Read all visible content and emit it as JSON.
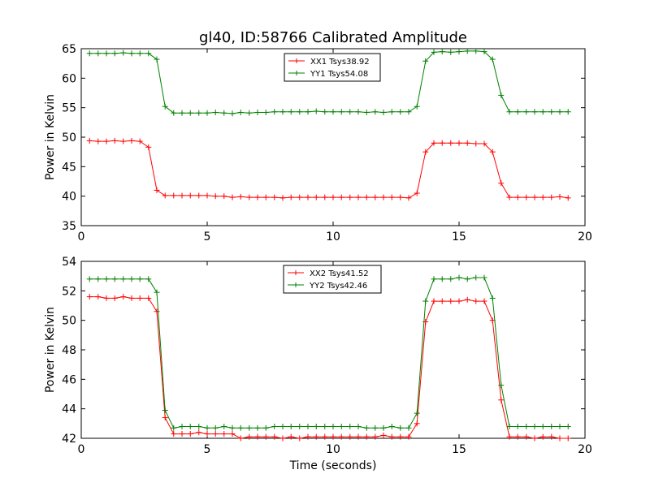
{
  "figure": {
    "title": "gl40, ID:58766 Calibrated Amplitude",
    "xlabel": "Time (seconds)",
    "background": "#ffffff"
  },
  "chart_data": [
    {
      "type": "line",
      "ylabel": "Power in Kelvin",
      "xlim": [
        0,
        20
      ],
      "ylim": [
        35,
        65
      ],
      "xticks": [
        "0",
        "5",
        "10",
        "15",
        "20"
      ],
      "yticks": [
        "35",
        "40",
        "45",
        "50",
        "55",
        "60",
        "65"
      ],
      "legend_position": "top-center",
      "x": [
        0.33,
        0.67,
        1.0,
        1.33,
        1.67,
        2.0,
        2.33,
        2.67,
        3.0,
        3.33,
        3.67,
        4.0,
        4.33,
        4.67,
        5.0,
        5.33,
        5.67,
        6.0,
        6.33,
        6.67,
        7.0,
        7.33,
        7.67,
        8.0,
        8.33,
        8.67,
        9.0,
        9.33,
        9.67,
        10.0,
        10.33,
        10.67,
        11.0,
        11.33,
        11.67,
        12.0,
        12.33,
        12.67,
        13.0,
        13.33,
        13.67,
        14.0,
        14.33,
        14.67,
        15.0,
        15.33,
        15.67,
        16.0,
        16.33,
        16.67,
        17.0,
        17.33,
        17.67,
        18.0,
        18.33,
        18.67,
        19.0,
        19.33
      ],
      "series": [
        {
          "name": "XX1 Tsys38.92",
          "color": "#ff0000",
          "values": [
            49.4,
            49.3,
            49.3,
            49.4,
            49.3,
            49.4,
            49.3,
            48.3,
            41.0,
            40.1,
            40.1,
            40.1,
            40.1,
            40.1,
            40.1,
            40.0,
            40.0,
            39.8,
            39.9,
            39.8,
            39.8,
            39.8,
            39.8,
            39.7,
            39.8,
            39.8,
            39.8,
            39.8,
            39.8,
            39.8,
            39.8,
            39.8,
            39.8,
            39.8,
            39.8,
            39.8,
            39.8,
            39.8,
            39.7,
            40.5,
            47.5,
            49.0,
            49.0,
            49.0,
            49.0,
            49.0,
            48.9,
            48.9,
            47.5,
            42.2,
            39.8,
            39.8,
            39.8,
            39.8,
            39.8,
            39.8,
            39.9,
            39.7
          ]
        },
        {
          "name": "YY1 Tsys54.08",
          "color": "#008000",
          "values": [
            64.2,
            64.2,
            64.2,
            64.2,
            64.3,
            64.2,
            64.2,
            64.2,
            63.2,
            55.2,
            54.1,
            54.1,
            54.1,
            54.1,
            54.1,
            54.2,
            54.1,
            54.0,
            54.2,
            54.1,
            54.2,
            54.2,
            54.3,
            54.3,
            54.3,
            54.3,
            54.3,
            54.4,
            54.3,
            54.3,
            54.3,
            54.3,
            54.3,
            54.2,
            54.3,
            54.2,
            54.3,
            54.3,
            54.3,
            55.2,
            62.9,
            64.4,
            64.5,
            64.4,
            64.5,
            64.6,
            64.6,
            64.5,
            63.2,
            57.1,
            54.3,
            54.3,
            54.3,
            54.3,
            54.3,
            54.3,
            54.3,
            54.3
          ]
        }
      ]
    },
    {
      "type": "line",
      "ylabel": "Power in Kelvin",
      "xlim": [
        0,
        20
      ],
      "ylim": [
        42,
        54
      ],
      "xticks": [
        "0",
        "5",
        "10",
        "15",
        "20"
      ],
      "yticks": [
        "42",
        "44",
        "46",
        "48",
        "50",
        "52",
        "54"
      ],
      "legend_position": "top-center",
      "x": [
        0.33,
        0.67,
        1.0,
        1.33,
        1.67,
        2.0,
        2.33,
        2.67,
        3.0,
        3.33,
        3.67,
        4.0,
        4.33,
        4.67,
        5.0,
        5.33,
        5.67,
        6.0,
        6.33,
        6.67,
        7.0,
        7.33,
        7.67,
        8.0,
        8.33,
        8.67,
        9.0,
        9.33,
        9.67,
        10.0,
        10.33,
        10.67,
        11.0,
        11.33,
        11.67,
        12.0,
        12.33,
        12.67,
        13.0,
        13.33,
        13.67,
        14.0,
        14.33,
        14.67,
        15.0,
        15.33,
        15.67,
        16.0,
        16.33,
        16.67,
        17.0,
        17.33,
        17.67,
        18.0,
        18.33,
        18.67,
        19.0,
        19.33
      ],
      "series": [
        {
          "name": "XX2 Tsys41.52",
          "color": "#ff0000",
          "values": [
            51.6,
            51.6,
            51.5,
            51.5,
            51.6,
            51.5,
            51.5,
            51.5,
            50.6,
            43.4,
            42.3,
            42.3,
            42.3,
            42.4,
            42.3,
            42.3,
            42.3,
            42.3,
            42.0,
            42.1,
            42.1,
            42.1,
            42.1,
            42.0,
            42.1,
            42.0,
            42.1,
            42.1,
            42.1,
            42.1,
            42.1,
            42.1,
            42.1,
            42.1,
            42.1,
            42.2,
            42.1,
            42.1,
            42.1,
            43.0,
            49.9,
            51.3,
            51.3,
            51.3,
            51.3,
            51.4,
            51.3,
            51.3,
            50.0,
            44.6,
            42.1,
            42.1,
            42.1,
            42.0,
            42.1,
            42.1,
            42.0,
            42.0
          ]
        },
        {
          "name": "YY2 Tsys42.46",
          "color": "#008000",
          "values": [
            52.8,
            52.8,
            52.8,
            52.8,
            52.8,
            52.8,
            52.8,
            52.8,
            51.9,
            43.9,
            42.7,
            42.8,
            42.8,
            42.8,
            42.7,
            42.7,
            42.8,
            42.7,
            42.7,
            42.7,
            42.7,
            42.7,
            42.8,
            42.8,
            42.8,
            42.8,
            42.8,
            42.8,
            42.8,
            42.8,
            42.8,
            42.8,
            42.8,
            42.7,
            42.7,
            42.7,
            42.8,
            42.7,
            42.7,
            43.7,
            51.3,
            52.8,
            52.8,
            52.8,
            52.9,
            52.8,
            52.9,
            52.9,
            51.5,
            45.6,
            42.8,
            42.8,
            42.8,
            42.8,
            42.8,
            42.8,
            42.8,
            42.8
          ]
        }
      ]
    }
  ]
}
